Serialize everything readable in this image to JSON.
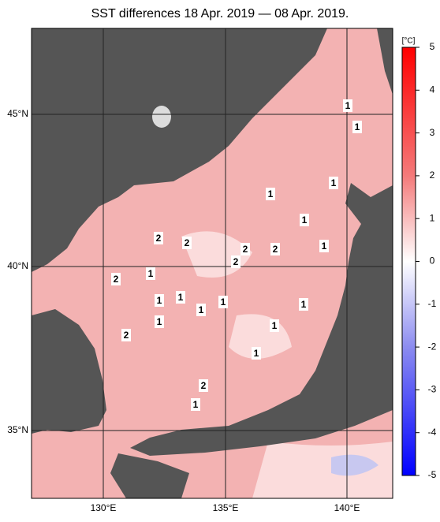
{
  "title": "SST differences 18 Apr. 2019 — 08 Apr. 2019.",
  "lon_labels": [
    "130°E",
    "135°E",
    "140°E"
  ],
  "lat_labels": [
    "45°N",
    "40°N",
    "35°N"
  ],
  "colorbar": {
    "unit": "[°C]",
    "range": [
      -5,
      5
    ],
    "ticks": [
      5,
      4,
      3,
      2,
      1,
      0,
      -1,
      -2,
      -3,
      -4,
      -5
    ]
  },
  "contour_labels": [
    "1",
    "1",
    "1",
    "1",
    "1",
    "1",
    "1",
    "1",
    "1",
    "1",
    "1",
    "1",
    "1",
    "1",
    "1",
    "1",
    "2",
    "2",
    "2",
    "2",
    "2",
    "2",
    "2",
    "2"
  ]
}
